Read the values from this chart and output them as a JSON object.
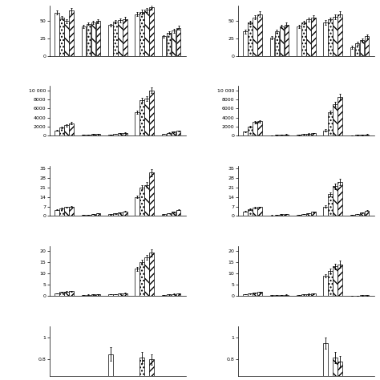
{
  "nrows": 5,
  "ncols": 2,
  "bar_patterns": [
    "",
    "....",
    "\\\\",
    "////"
  ],
  "plots": [
    {
      "row": 0,
      "col": 0,
      "ylim": [
        0,
        72
      ],
      "yticks": [
        0,
        25,
        50
      ],
      "values": [
        [
          62,
          55,
          50,
          65
        ],
        [
          42,
          46,
          48,
          50
        ],
        [
          44,
          49,
          51,
          53
        ],
        [
          60,
          63,
          66,
          70
        ],
        [
          28,
          33,
          36,
          40
        ]
      ],
      "errors": [
        [
          3,
          2,
          3,
          4
        ],
        [
          2,
          2,
          2,
          3
        ],
        [
          2,
          2,
          3,
          3
        ],
        [
          3,
          3,
          3,
          4
        ],
        [
          2,
          2,
          3,
          3
        ]
      ]
    },
    {
      "row": 0,
      "col": 1,
      "ylim": [
        0,
        72
      ],
      "yticks": [
        0,
        25,
        50
      ],
      "values": [
        [
          35,
          48,
          55,
          60
        ],
        [
          26,
          35,
          42,
          45
        ],
        [
          42,
          48,
          52,
          55
        ],
        [
          48,
          52,
          56,
          60
        ],
        [
          12,
          18,
          22,
          28
        ]
      ],
      "errors": [
        [
          3,
          2,
          3,
          4
        ],
        [
          2,
          2,
          2,
          3
        ],
        [
          2,
          2,
          3,
          3
        ],
        [
          3,
          3,
          3,
          4
        ],
        [
          2,
          2,
          3,
          3
        ]
      ]
    },
    {
      "row": 1,
      "col": 0,
      "ylim": [
        0,
        11000
      ],
      "yticks": [
        0,
        2000,
        4000,
        6000,
        8000,
        10000
      ],
      "values": [
        [
          1200,
          1900,
          2300,
          2800
        ],
        [
          200,
          300,
          350,
          400
        ],
        [
          250,
          400,
          550,
          700
        ],
        [
          5200,
          7900,
          8200,
          10000
        ],
        [
          400,
          700,
          900,
          1100
        ]
      ],
      "errors": [
        [
          100,
          150,
          200,
          250
        ],
        [
          20,
          30,
          30,
          40
        ],
        [
          30,
          40,
          50,
          60
        ],
        [
          300,
          400,
          500,
          600
        ],
        [
          40,
          60,
          80,
          100
        ]
      ]
    },
    {
      "row": 1,
      "col": 1,
      "ylim": [
        0,
        11000
      ],
      "yticks": [
        0,
        2000,
        4000,
        6000,
        8000,
        10000
      ],
      "values": [
        [
          900,
          2000,
          3000,
          3200
        ],
        [
          150,
          200,
          280,
          320
        ],
        [
          200,
          350,
          500,
          600
        ],
        [
          1200,
          5200,
          7000,
          8500
        ],
        [
          100,
          180,
          230,
          280
        ]
      ],
      "errors": [
        [
          100,
          150,
          200,
          250
        ],
        [
          20,
          30,
          30,
          40
        ],
        [
          30,
          40,
          50,
          60
        ],
        [
          300,
          400,
          500,
          700
        ],
        [
          40,
          60,
          80,
          100
        ]
      ]
    },
    {
      "row": 2,
      "col": 0,
      "ylim": [
        0,
        37
      ],
      "yticks": [
        0,
        7,
        14,
        21,
        28,
        35
      ],
      "values": [
        [
          4.5,
          5.5,
          6.5,
          7.0
        ],
        [
          0.8,
          1.0,
          1.5,
          2.0
        ],
        [
          1.2,
          1.8,
          2.5,
          3.5
        ],
        [
          14,
          21,
          23,
          32
        ],
        [
          1.2,
          2.0,
          3.0,
          4.5
        ]
      ],
      "errors": [
        [
          0.3,
          0.4,
          0.5,
          0.5
        ],
        [
          0.1,
          0.1,
          0.2,
          0.2
        ],
        [
          0.1,
          0.2,
          0.2,
          0.3
        ],
        [
          1.0,
          1.5,
          2.0,
          2.5
        ],
        [
          0.1,
          0.2,
          0.3,
          0.4
        ]
      ]
    },
    {
      "row": 2,
      "col": 1,
      "ylim": [
        0,
        37
      ],
      "yticks": [
        0,
        7,
        14,
        21,
        28,
        35
      ],
      "values": [
        [
          3.5,
          5.0,
          6.0,
          6.5
        ],
        [
          0.5,
          0.8,
          1.2,
          1.5
        ],
        [
          1.0,
          1.5,
          2.0,
          3.0
        ],
        [
          7.0,
          16,
          22,
          25
        ],
        [
          1.0,
          1.5,
          2.5,
          4.0
        ]
      ],
      "errors": [
        [
          0.3,
          0.4,
          0.5,
          0.5
        ],
        [
          0.1,
          0.1,
          0.2,
          0.2
        ],
        [
          0.1,
          0.2,
          0.2,
          0.3
        ],
        [
          1.0,
          1.5,
          2.0,
          2.5
        ],
        [
          0.1,
          0.2,
          0.3,
          0.4
        ]
      ]
    },
    {
      "row": 3,
      "col": 0,
      "ylim": [
        0,
        22
      ],
      "yticks": [
        0,
        5,
        10,
        15,
        20
      ],
      "values": [
        [
          1.2,
          1.8,
          2.0,
          2.2
        ],
        [
          0.5,
          0.6,
          0.7,
          0.8
        ],
        [
          0.7,
          0.9,
          1.1,
          1.3
        ],
        [
          12,
          15,
          17,
          19
        ],
        [
          0.5,
          0.7,
          0.9,
          1.1
        ]
      ],
      "errors": [
        [
          0.1,
          0.15,
          0.2,
          0.2
        ],
        [
          0.05,
          0.05,
          0.07,
          0.08
        ],
        [
          0.05,
          0.08,
          0.1,
          0.12
        ],
        [
          0.8,
          1.0,
          1.2,
          1.5
        ],
        [
          0.05,
          0.07,
          0.1,
          0.12
        ]
      ]
    },
    {
      "row": 3,
      "col": 1,
      "ylim": [
        0,
        22
      ],
      "yticks": [
        0,
        5,
        10,
        15,
        20
      ],
      "values": [
        [
          0.8,
          1.2,
          1.5,
          1.8
        ],
        [
          0.3,
          0.4,
          0.5,
          0.6
        ],
        [
          0.5,
          0.7,
          0.9,
          1.1
        ],
        [
          9.0,
          11,
          13,
          14
        ],
        [
          0.1,
          0.2,
          0.3,
          0.4
        ]
      ],
      "errors": [
        [
          0.1,
          0.15,
          0.2,
          0.2
        ],
        [
          0.05,
          0.05,
          0.07,
          0.08
        ],
        [
          0.05,
          0.08,
          0.1,
          0.12
        ],
        [
          0.8,
          1.0,
          1.2,
          1.5
        ],
        [
          0.05,
          0.07,
          0.1,
          0.12
        ]
      ]
    },
    {
      "row": 4,
      "col": 0,
      "ylim": [
        0.65,
        1.1
      ],
      "yticks": [
        0.8,
        1.0
      ],
      "values": [
        [
          null,
          null,
          null,
          null
        ],
        [
          null,
          null,
          null,
          null
        ],
        [
          0.85,
          null,
          null,
          null
        ],
        [
          null,
          0.82,
          null,
          0.8
        ],
        [
          null,
          null,
          null,
          null
        ]
      ],
      "errors": [
        [
          null,
          null,
          null,
          null
        ],
        [
          null,
          null,
          null,
          null
        ],
        [
          0.06,
          null,
          null,
          null
        ],
        [
          null,
          0.05,
          null,
          0.05
        ],
        [
          null,
          null,
          null,
          null
        ]
      ]
    },
    {
      "row": 4,
      "col": 1,
      "ylim": [
        0.65,
        1.1
      ],
      "yticks": [
        0.8,
        1.0
      ],
      "values": [
        [
          null,
          null,
          null,
          null
        ],
        [
          null,
          null,
          null,
          null
        ],
        [
          null,
          null,
          null,
          null
        ],
        [
          0.95,
          null,
          0.82,
          0.78
        ],
        [
          null,
          null,
          null,
          null
        ]
      ],
      "errors": [
        [
          null,
          null,
          null,
          null
        ],
        [
          null,
          null,
          null,
          null
        ],
        [
          null,
          null,
          null,
          null
        ],
        [
          0.05,
          null,
          0.05,
          0.05
        ],
        [
          null,
          null,
          null,
          null
        ]
      ]
    }
  ]
}
